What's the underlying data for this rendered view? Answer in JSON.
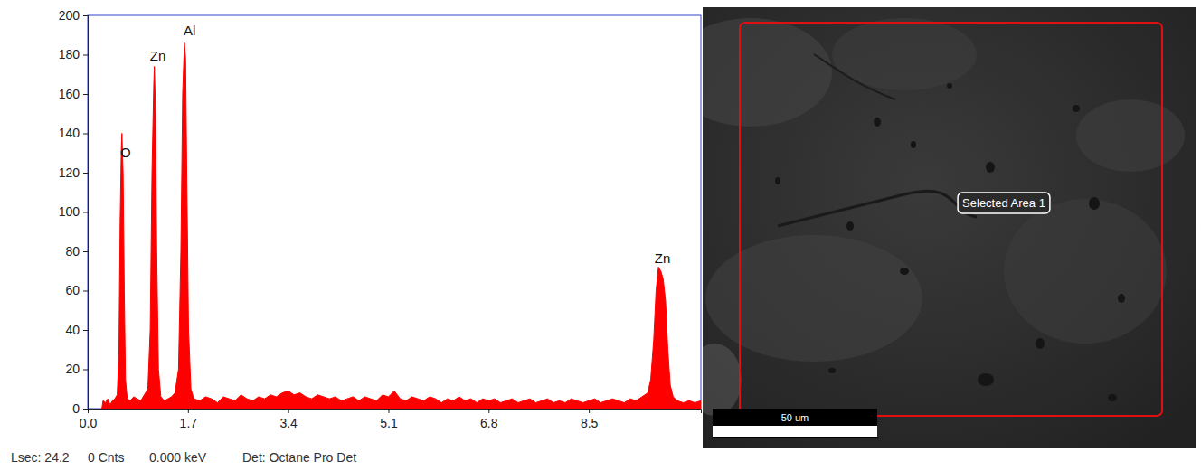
{
  "chart_data": {
    "type": "area",
    "color": "#ff0000",
    "x": [
      0.24,
      0.26,
      0.3,
      0.34,
      0.38,
      0.42,
      0.46,
      0.5,
      0.53,
      0.55,
      0.57,
      0.58,
      0.6,
      0.62,
      0.64,
      0.67,
      0.72,
      0.78,
      0.84,
      0.9,
      0.96,
      1.02,
      1.06,
      1.09,
      1.12,
      1.13,
      1.15,
      1.17,
      1.2,
      1.24,
      1.3,
      1.36,
      1.42,
      1.48,
      1.54,
      1.58,
      1.61,
      1.64,
      1.66,
      1.68,
      1.71,
      1.75,
      1.8,
      1.9,
      2.0,
      2.1,
      2.2,
      2.3,
      2.4,
      2.5,
      2.6,
      2.7,
      2.8,
      2.9,
      3.0,
      3.1,
      3.2,
      3.3,
      3.4,
      3.5,
      3.6,
      3.7,
      3.8,
      3.9,
      4.0,
      4.1,
      4.2,
      4.3,
      4.4,
      4.5,
      4.6,
      4.7,
      4.8,
      4.9,
      5.0,
      5.1,
      5.2,
      5.3,
      5.4,
      5.5,
      5.6,
      5.7,
      5.8,
      5.9,
      6.0,
      6.1,
      6.2,
      6.3,
      6.4,
      6.5,
      6.6,
      6.7,
      6.8,
      6.9,
      7.0,
      7.1,
      7.2,
      7.3,
      7.4,
      7.5,
      7.6,
      7.7,
      7.8,
      7.9,
      8.0,
      8.1,
      8.2,
      8.3,
      8.4,
      8.5,
      8.6,
      8.7,
      8.8,
      8.9,
      9.0,
      9.1,
      9.2,
      9.3,
      9.4,
      9.5,
      9.55,
      9.6,
      9.64,
      9.68,
      9.72,
      9.76,
      9.8,
      9.84,
      9.88,
      9.93,
      10.0,
      10.1,
      10.2,
      10.3,
      10.4
    ],
    "values": [
      0,
      4,
      3,
      5,
      2,
      4,
      5,
      7,
      30,
      95,
      132,
      140,
      120,
      60,
      15,
      5,
      4,
      6,
      5,
      4,
      7,
      10,
      40,
      120,
      165,
      174,
      150,
      80,
      20,
      6,
      4,
      5,
      6,
      8,
      20,
      80,
      160,
      186,
      178,
      120,
      40,
      10,
      5,
      4,
      6,
      5,
      3,
      6,
      5,
      4,
      7,
      5,
      4,
      6,
      5,
      7,
      6,
      8,
      9,
      7,
      8,
      6,
      5,
      7,
      6,
      5,
      6,
      4,
      5,
      6,
      4,
      6,
      5,
      4,
      7,
      6,
      9,
      5,
      4,
      6,
      5,
      4,
      6,
      5,
      3,
      5,
      4,
      6,
      4,
      5,
      3,
      5,
      4,
      5,
      3,
      4,
      5,
      3,
      4,
      5,
      3,
      4,
      5,
      3,
      4,
      3,
      5,
      4,
      3,
      4,
      5,
      3,
      4,
      5,
      4,
      3,
      5,
      4,
      6,
      8,
      15,
      35,
      60,
      72,
      70,
      66,
      55,
      30,
      12,
      6,
      4,
      3,
      4,
      3,
      4
    ],
    "xlim": [
      0,
      10.4
    ],
    "xticks": [
      {
        "value": 0,
        "label": "0.0"
      },
      1.7,
      3.4,
      5.1,
      6.8,
      8.5
    ],
    "ylim": [
      0,
      200
    ],
    "yticks": [
      0,
      20,
      40,
      60,
      80,
      100,
      120,
      140,
      160,
      180,
      200
    ],
    "annotations": [
      {
        "text": "O",
        "x": 0.64,
        "y": 128
      },
      {
        "text": "Zn",
        "x": 1.19,
        "y": 177
      },
      {
        "text": "Al",
        "x": 1.73,
        "y": 190
      },
      {
        "text": "Zn",
        "x": 9.75,
        "y": 74
      }
    ]
  },
  "status_bar": [
    "Lsec: 24.2",
    "0 Cnts",
    "0.000 keV",
    "Det: Octane Pro Det"
  ],
  "micrograph": {
    "selection_label": "Selected Area 1",
    "scale_bar": "50 um"
  }
}
